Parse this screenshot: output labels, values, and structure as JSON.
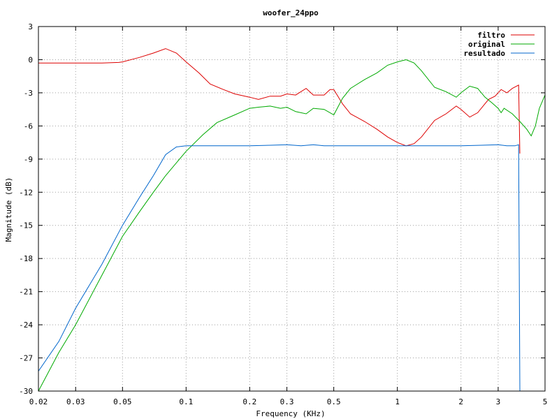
{
  "chart_data": {
    "type": "line",
    "title": "woofer_24ppo",
    "xlabel": "Frequency (KHz)",
    "ylabel": "Magnitude (dB)",
    "x_scale": "log",
    "xlim": [
      0.02,
      5
    ],
    "ylim": [
      -30,
      3
    ],
    "grid": true,
    "legend_position": "top-right",
    "x_ticks": [
      {
        "value": 0.02,
        "label": "0.02"
      },
      {
        "value": 0.03,
        "label": "0.03"
      },
      {
        "value": 0.05,
        "label": "0.05"
      },
      {
        "value": 0.1,
        "label": "0.1"
      },
      {
        "value": 0.2,
        "label": "0.2"
      },
      {
        "value": 0.3,
        "label": "0.3"
      },
      {
        "value": 0.5,
        "label": "0.5"
      },
      {
        "value": 1,
        "label": "1"
      },
      {
        "value": 2,
        "label": "2"
      },
      {
        "value": 3,
        "label": "3"
      },
      {
        "value": 5,
        "label": "5"
      }
    ],
    "y_ticks": [
      {
        "value": 3,
        "label": "3"
      },
      {
        "value": 0,
        "label": "0"
      },
      {
        "value": -3,
        "label": "-3"
      },
      {
        "value": -6,
        "label": "-6"
      },
      {
        "value": -9,
        "label": "-9"
      },
      {
        "value": -12,
        "label": "-12"
      },
      {
        "value": -15,
        "label": "-15"
      },
      {
        "value": -18,
        "label": "-18"
      },
      {
        "value": -21,
        "label": "-21"
      },
      {
        "value": -24,
        "label": "-24"
      },
      {
        "value": -27,
        "label": "-27"
      },
      {
        "value": -30,
        "label": "-30"
      }
    ],
    "series": [
      {
        "name": "filtro",
        "color": "#dd0000",
        "points": [
          [
            0.02,
            -0.3
          ],
          [
            0.03,
            -0.3
          ],
          [
            0.04,
            -0.3
          ],
          [
            0.048,
            -0.25
          ],
          [
            0.05,
            -0.2
          ],
          [
            0.06,
            0.2
          ],
          [
            0.07,
            0.6
          ],
          [
            0.08,
            1.0
          ],
          [
            0.09,
            0.6
          ],
          [
            0.1,
            -0.2
          ],
          [
            0.115,
            -1.2
          ],
          [
            0.13,
            -2.2
          ],
          [
            0.15,
            -2.7
          ],
          [
            0.17,
            -3.1
          ],
          [
            0.2,
            -3.4
          ],
          [
            0.22,
            -3.6
          ],
          [
            0.25,
            -3.3
          ],
          [
            0.28,
            -3.3
          ],
          [
            0.3,
            -3.1
          ],
          [
            0.33,
            -3.2
          ],
          [
            0.37,
            -2.6
          ],
          [
            0.4,
            -3.2
          ],
          [
            0.45,
            -3.2
          ],
          [
            0.48,
            -2.7
          ],
          [
            0.5,
            -2.7
          ],
          [
            0.55,
            -4.0
          ],
          [
            0.6,
            -4.9
          ],
          [
            0.7,
            -5.6
          ],
          [
            0.8,
            -6.3
          ],
          [
            0.9,
            -7.0
          ],
          [
            1.0,
            -7.5
          ],
          [
            1.1,
            -7.8
          ],
          [
            1.2,
            -7.6
          ],
          [
            1.3,
            -7.0
          ],
          [
            1.5,
            -5.5
          ],
          [
            1.7,
            -4.9
          ],
          [
            1.9,
            -4.2
          ],
          [
            2.0,
            -4.5
          ],
          [
            2.2,
            -5.2
          ],
          [
            2.4,
            -4.8
          ],
          [
            2.7,
            -3.6
          ],
          [
            2.9,
            -3.3
          ],
          [
            3.1,
            -2.7
          ],
          [
            3.3,
            -3.0
          ],
          [
            3.5,
            -2.6
          ],
          [
            3.75,
            -2.3
          ],
          [
            3.8,
            -8.5
          ]
        ]
      },
      {
        "name": "original",
        "color": "#00aa00",
        "points": [
          [
            0.02,
            -30.0
          ],
          [
            0.025,
            -26.5
          ],
          [
            0.03,
            -24.0
          ],
          [
            0.04,
            -19.5
          ],
          [
            0.05,
            -16.0
          ],
          [
            0.06,
            -13.8
          ],
          [
            0.07,
            -12.0
          ],
          [
            0.08,
            -10.5
          ],
          [
            0.1,
            -8.3
          ],
          [
            0.12,
            -6.8
          ],
          [
            0.14,
            -5.7
          ],
          [
            0.17,
            -5.0
          ],
          [
            0.2,
            -4.4
          ],
          [
            0.22,
            -4.3
          ],
          [
            0.25,
            -4.2
          ],
          [
            0.28,
            -4.4
          ],
          [
            0.3,
            -4.3
          ],
          [
            0.33,
            -4.7
          ],
          [
            0.37,
            -4.9
          ],
          [
            0.4,
            -4.4
          ],
          [
            0.45,
            -4.5
          ],
          [
            0.5,
            -5.0
          ],
          [
            0.55,
            -3.5
          ],
          [
            0.6,
            -2.6
          ],
          [
            0.7,
            -1.8
          ],
          [
            0.8,
            -1.2
          ],
          [
            0.9,
            -0.5
          ],
          [
            1.0,
            -0.2
          ],
          [
            1.1,
            0.0
          ],
          [
            1.2,
            -0.3
          ],
          [
            1.3,
            -1.0
          ],
          [
            1.5,
            -2.5
          ],
          [
            1.7,
            -2.9
          ],
          [
            1.9,
            -3.4
          ],
          [
            2.0,
            -3.0
          ],
          [
            2.2,
            -2.4
          ],
          [
            2.4,
            -2.6
          ],
          [
            2.6,
            -3.4
          ],
          [
            2.8,
            -3.9
          ],
          [
            3.0,
            -4.4
          ],
          [
            3.1,
            -4.8
          ],
          [
            3.2,
            -4.4
          ],
          [
            3.5,
            -4.9
          ],
          [
            3.8,
            -5.6
          ],
          [
            4.1,
            -6.3
          ],
          [
            4.3,
            -6.9
          ],
          [
            4.5,
            -6.0
          ],
          [
            4.7,
            -4.4
          ],
          [
            5.0,
            -3.2
          ]
        ]
      },
      {
        "name": "resultado",
        "color": "#0066cc",
        "points": [
          [
            0.02,
            -28.2
          ],
          [
            0.025,
            -25.5
          ],
          [
            0.03,
            -22.5
          ],
          [
            0.04,
            -18.5
          ],
          [
            0.05,
            -15.0
          ],
          [
            0.06,
            -12.5
          ],
          [
            0.07,
            -10.5
          ],
          [
            0.08,
            -8.6
          ],
          [
            0.09,
            -7.9
          ],
          [
            0.1,
            -7.8
          ],
          [
            0.15,
            -7.8
          ],
          [
            0.2,
            -7.8
          ],
          [
            0.25,
            -7.75
          ],
          [
            0.3,
            -7.7
          ],
          [
            0.35,
            -7.8
          ],
          [
            0.4,
            -7.7
          ],
          [
            0.45,
            -7.8
          ],
          [
            0.5,
            -7.8
          ],
          [
            0.6,
            -7.8
          ],
          [
            0.8,
            -7.8
          ],
          [
            1.0,
            -7.8
          ],
          [
            1.5,
            -7.8
          ],
          [
            2.0,
            -7.8
          ],
          [
            2.5,
            -7.75
          ],
          [
            3.0,
            -7.7
          ],
          [
            3.3,
            -7.8
          ],
          [
            3.6,
            -7.8
          ],
          [
            3.75,
            -7.7
          ],
          [
            3.8,
            -30.0
          ]
        ]
      }
    ]
  }
}
